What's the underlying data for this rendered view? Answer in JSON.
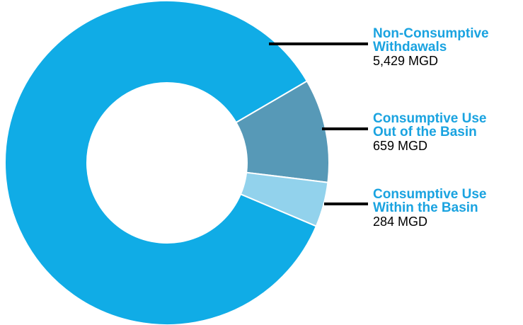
{
  "chart_data": {
    "type": "donut",
    "categories": [
      "Non-Consumptive Withdawals",
      "Consumptive Use Out of the Basin",
      "Consumptive Use Within the Basin"
    ],
    "values": [
      5429,
      659,
      284
    ],
    "value_labels": [
      "5,429 MGD",
      "659 MGD",
      "284 MGD"
    ],
    "colors": [
      "#10ace6",
      "#5799b7",
      "#92d2ec"
    ]
  }
}
